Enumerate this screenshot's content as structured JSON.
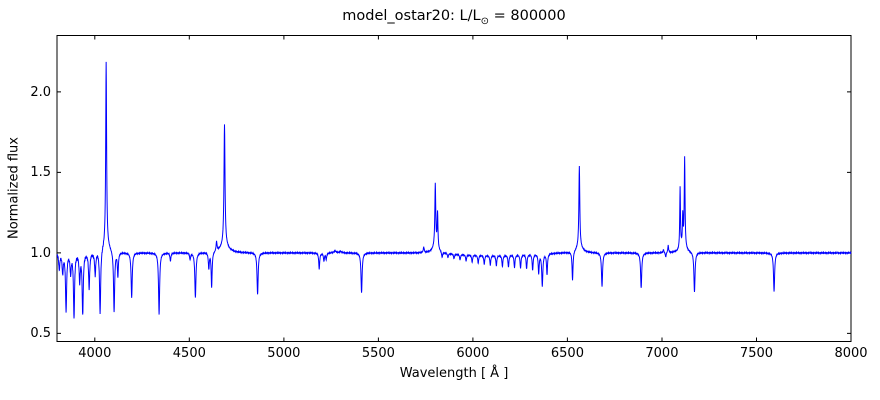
{
  "figure": {
    "title_prefix": "model_ostar20: L/L",
    "title_sun_symbol": "⊙",
    "title_suffix": " = 800000",
    "xlabel": "Wavelength [ Å ]",
    "ylabel": "Normalized flux"
  },
  "chart_data": {
    "type": "line",
    "title": "model_ostar20: L/L⊙ = 800000",
    "xlabel": "Wavelength [ Å ]",
    "ylabel": "Normalized flux",
    "xlim": [
      3800,
      8000
    ],
    "ylim": [
      0.45,
      2.35
    ],
    "xticks": [
      "4000",
      "4500",
      "5000",
      "5500",
      "6000",
      "6500",
      "7000",
      "7500",
      "8000"
    ],
    "yticks": [
      "0.5",
      "1.0",
      "1.5",
      "2.0"
    ],
    "grid": false,
    "legend": null,
    "line_color": "#0000ff",
    "axis_color": "#000000",
    "background_color": "#ffffff",
    "continuum": 1.0,
    "series": [
      {
        "name": "normalized flux spectrum",
        "description": "continuum at 1.0 with Lorentzian emission peaks (positive amp) and absorption lines (negative amp); entries are [wavelength_A, amplitude, half_width_A]",
        "features": [
          [
            3812,
            -0.1,
            3.5
          ],
          [
            3830,
            -0.12,
            3.5
          ],
          [
            3848,
            -0.36,
            3.5
          ],
          [
            3872,
            -0.12,
            3.5
          ],
          [
            3890,
            -0.4,
            3.5
          ],
          [
            3920,
            -0.17,
            3.5
          ],
          [
            3936,
            -0.38,
            3.5
          ],
          [
            3970,
            -0.22,
            3.5
          ],
          [
            4002,
            -0.14,
            3.5
          ],
          [
            4028,
            -0.4,
            3.5
          ],
          [
            4060,
            1.14,
            2.8
          ],
          [
            4060,
            0.055,
            22
          ],
          [
            4102,
            -0.38,
            3.5
          ],
          [
            4122,
            -0.15,
            3.0
          ],
          [
            4195,
            -0.28,
            3.5
          ],
          [
            4340,
            -0.38,
            3.5
          ],
          [
            4400,
            -0.05,
            3.0
          ],
          [
            4504,
            -0.04,
            3.0
          ],
          [
            4532,
            -0.28,
            3.5
          ],
          [
            4603,
            -0.1,
            3.0
          ],
          [
            4618,
            -0.22,
            3.0
          ],
          [
            4644,
            0.06,
            3.0
          ],
          [
            4686,
            0.75,
            3.2
          ],
          [
            4686,
            0.05,
            25
          ],
          [
            4861,
            -0.26,
            3.5
          ],
          [
            5187,
            -0.1,
            3.0
          ],
          [
            5212,
            -0.05,
            3.0
          ],
          [
            5224,
            -0.04,
            3.0
          ],
          [
            5270,
            0.012,
            8.0
          ],
          [
            5300,
            0.01,
            6.0
          ],
          [
            5411,
            -0.25,
            3.5
          ],
          [
            5740,
            0.035,
            3.0
          ],
          [
            5801,
            0.39,
            2.8
          ],
          [
            5813,
            0.22,
            2.5
          ],
          [
            5801,
            0.04,
            18
          ],
          [
            5837,
            -0.035,
            3.0
          ],
          [
            5868,
            -0.025,
            3.0
          ],
          [
            5900,
            -0.03,
            3.0
          ],
          [
            5932,
            -0.035,
            3.0
          ],
          [
            5964,
            -0.04,
            3.0
          ],
          [
            5996,
            -0.045,
            3.0
          ],
          [
            6028,
            -0.05,
            3.0
          ],
          [
            6060,
            -0.055,
            3.0
          ],
          [
            6092,
            -0.06,
            3.0
          ],
          [
            6124,
            -0.065,
            3.0
          ],
          [
            6156,
            -0.07,
            3.0
          ],
          [
            6188,
            -0.075,
            3.0
          ],
          [
            6220,
            -0.08,
            3.0
          ],
          [
            6252,
            -0.085,
            3.0
          ],
          [
            6284,
            -0.09,
            3.0
          ],
          [
            6316,
            -0.1,
            3.0
          ],
          [
            6348,
            -0.12,
            3.0
          ],
          [
            6367,
            -0.2,
            3.5
          ],
          [
            6392,
            -0.13,
            3.0
          ],
          [
            6527,
            -0.18,
            3.0
          ],
          [
            6563,
            0.5,
            2.8
          ],
          [
            6563,
            0.04,
            20
          ],
          [
            6683,
            -0.21,
            3.5
          ],
          [
            6890,
            -0.22,
            3.5
          ],
          [
            7008,
            0.02,
            2.5
          ],
          [
            7020,
            -0.03,
            2.5
          ],
          [
            7033,
            0.045,
            2.5
          ],
          [
            7096,
            0.38,
            2.2
          ],
          [
            7110,
            0.18,
            2.0
          ],
          [
            7120,
            0.55,
            2.4
          ],
          [
            7112,
            0.05,
            16
          ],
          [
            7172,
            -0.25,
            3.5
          ],
          [
            7593,
            -0.24,
            3.5
          ]
        ],
        "depression": {
          "center": 6100,
          "halfwidth": 240,
          "amp": -0.015
        },
        "noise": {
          "left_end": 4050,
          "left_amp": 0.01,
          "base_amp": 0.003
        }
      }
    ],
    "peak_summary": {
      "emission_peaks": [
        {
          "wavelength": 4060,
          "flux": 2.19
        },
        {
          "wavelength": 4686,
          "flux": 1.8
        },
        {
          "wavelength": 5801,
          "flux": 1.43
        },
        {
          "wavelength": 5813,
          "flux": 1.25
        },
        {
          "wavelength": 6563,
          "flux": 1.53
        },
        {
          "wavelength": 7096,
          "flux": 1.4
        },
        {
          "wavelength": 7120,
          "flux": 1.6
        }
      ],
      "deep_absorption_lines": [
        {
          "wavelength": 3890,
          "flux": 0.6
        },
        {
          "wavelength": 3936,
          "flux": 0.62
        },
        {
          "wavelength": 4028,
          "flux": 0.6
        },
        {
          "wavelength": 4102,
          "flux": 0.62
        },
        {
          "wavelength": 4340,
          "flux": 0.62
        },
        {
          "wavelength": 4532,
          "flux": 0.72
        },
        {
          "wavelength": 4861,
          "flux": 0.74
        },
        {
          "wavelength": 5411,
          "flux": 0.75
        },
        {
          "wavelength": 6683,
          "flux": 0.79
        },
        {
          "wavelength": 6890,
          "flux": 0.78
        },
        {
          "wavelength": 7172,
          "flux": 0.75
        },
        {
          "wavelength": 7593,
          "flux": 0.76
        }
      ]
    }
  }
}
